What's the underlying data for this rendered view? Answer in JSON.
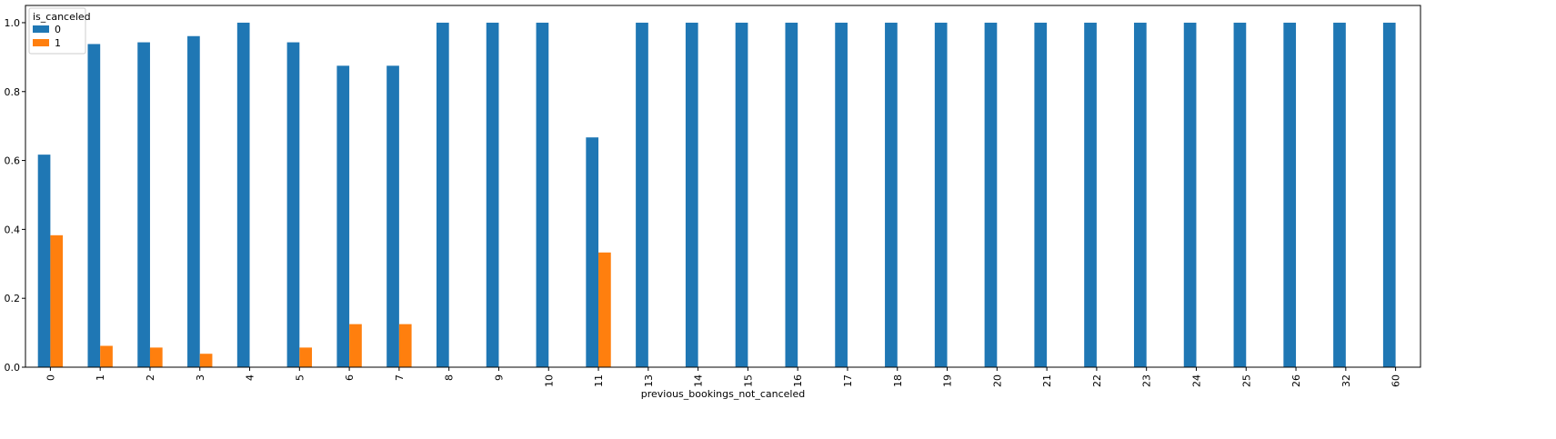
{
  "chart_data": {
    "type": "bar",
    "xlabel": "previous_bookings_not_canceled",
    "ylabel": "",
    "ylim": [
      0,
      1.05
    ],
    "yticks": [
      "0.0",
      "0.2",
      "0.4",
      "0.6",
      "0.8",
      "1.0"
    ],
    "categories": [
      "0",
      "1",
      "2",
      "3",
      "4",
      "5",
      "6",
      "7",
      "8",
      "9",
      "10",
      "11",
      "13",
      "14",
      "15",
      "16",
      "17",
      "18",
      "19",
      "20",
      "21",
      "22",
      "23",
      "24",
      "25",
      "26",
      "32",
      "60"
    ],
    "legend_title": "is_canceled",
    "legend_position": "top-left",
    "grid": false,
    "series": [
      {
        "name": "0",
        "color": "#1f77b4",
        "values": [
          0.617,
          0.938,
          0.943,
          0.961,
          1.0,
          0.943,
          0.875,
          0.875,
          1.0,
          1.0,
          1.0,
          0.667,
          1.0,
          1.0,
          1.0,
          1.0,
          1.0,
          1.0,
          1.0,
          1.0,
          1.0,
          1.0,
          1.0,
          1.0,
          1.0,
          1.0,
          1.0,
          1.0
        ]
      },
      {
        "name": "1",
        "color": "#ff7f0e",
        "values": [
          0.383,
          0.062,
          0.057,
          0.039,
          0.0,
          0.057,
          0.125,
          0.125,
          0.0,
          0.0,
          0.0,
          0.333,
          0.0,
          0.0,
          0.0,
          0.0,
          0.0,
          0.0,
          0.0,
          0.0,
          0.0,
          0.0,
          0.0,
          0.0,
          0.0,
          0.0,
          0.0,
          0.0
        ]
      }
    ]
  }
}
